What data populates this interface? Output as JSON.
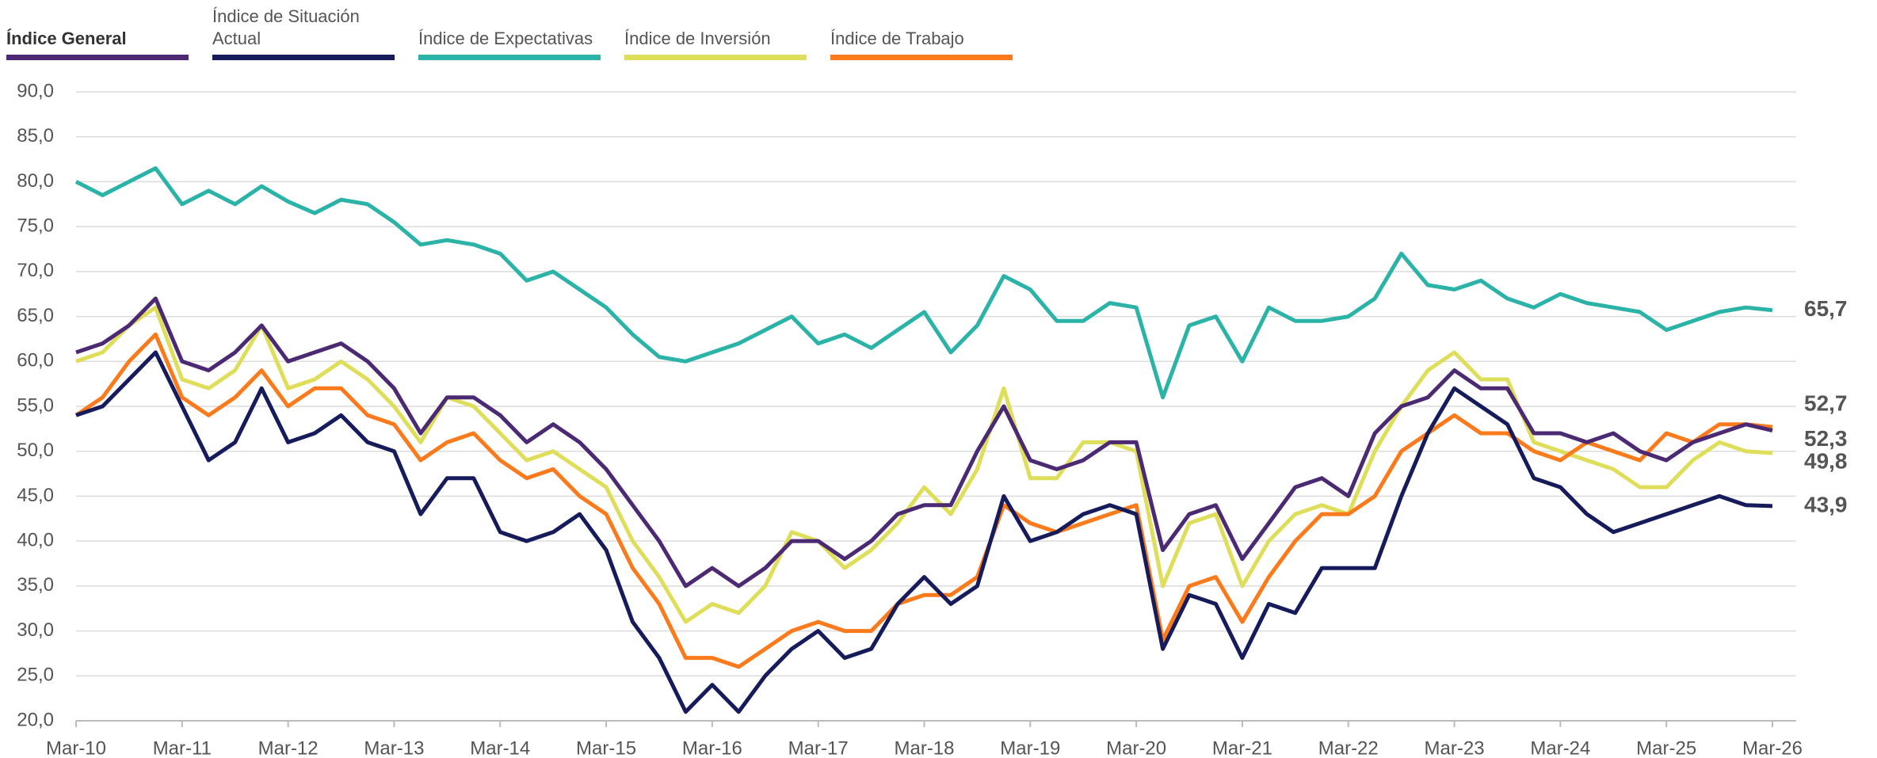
{
  "chart_data": {
    "type": "line",
    "categories": [
      "Mar-10",
      null,
      null,
      null,
      "Mar-11",
      null,
      null,
      null,
      "Mar-12",
      null,
      null,
      null,
      "Mar-13",
      null,
      null,
      null,
      "Mar-14",
      null,
      null,
      null,
      "Mar-15",
      null,
      null,
      null,
      "Mar-16",
      null,
      null,
      null,
      "Mar-17",
      null,
      null,
      null,
      "Mar-18",
      null,
      null,
      null,
      "Mar-19",
      null,
      null,
      null,
      "Mar-20",
      null,
      null,
      null,
      "Mar-21",
      null,
      null,
      null,
      "Mar-22",
      null,
      null,
      null,
      "Mar-23",
      null,
      null,
      null,
      "Mar-24",
      null,
      null,
      null,
      "Mar-25",
      null,
      null,
      null,
      "Mar-26"
    ],
    "series": [
      {
        "name": "Índice General",
        "color": "#4b2a73",
        "end_label": "52,3",
        "values": [
          61,
          62,
          64,
          67,
          60,
          59,
          61,
          64,
          60,
          61,
          62,
          60,
          57,
          52,
          56,
          56,
          54,
          51,
          53,
          51,
          48,
          44,
          40,
          35,
          37,
          35,
          37,
          40,
          40,
          38,
          40,
          43,
          44,
          44,
          50,
          55,
          49,
          48,
          49,
          51,
          51,
          39,
          43,
          44,
          38,
          42,
          46,
          47,
          45,
          52,
          55,
          56,
          59,
          57,
          57,
          52,
          52,
          51,
          52,
          50,
          49,
          51,
          52,
          53,
          52.3
        ]
      },
      {
        "name": "Índice de Situación Actual",
        "color": "#161b5c",
        "end_label": "43,9",
        "values": [
          54,
          55,
          58,
          61,
          55,
          49,
          51,
          57,
          51,
          52,
          54,
          51,
          50,
          43,
          47,
          47,
          41,
          40,
          41,
          43,
          39,
          31,
          27,
          21,
          24,
          21,
          25,
          28,
          30,
          27,
          28,
          33,
          36,
          33,
          35,
          45,
          40,
          41,
          43,
          44,
          43,
          28,
          34,
          33,
          27,
          33,
          32,
          37,
          37,
          37,
          45,
          52,
          57,
          55,
          53,
          47,
          46,
          43,
          41,
          42,
          43,
          44,
          45,
          44,
          43.9
        ]
      },
      {
        "name": "Índice de Expectativas",
        "color": "#2bb3a8",
        "end_label": "65,7",
        "values": [
          80,
          78.5,
          80,
          81.5,
          77.5,
          79,
          77.5,
          79.5,
          77.8,
          76.5,
          78,
          77.5,
          75.5,
          73,
          73.5,
          73,
          72,
          69,
          70,
          68,
          66,
          63,
          60.5,
          60,
          61,
          62,
          63.5,
          65,
          62,
          63,
          61.5,
          63.5,
          65.5,
          61,
          64,
          69.5,
          68,
          64.5,
          64.5,
          66.5,
          66,
          56,
          64,
          65,
          60,
          66,
          64.5,
          64.5,
          65,
          67,
          72,
          68.5,
          68,
          69,
          67,
          66,
          67.5,
          66.5,
          66,
          65.5,
          63.5,
          64.5,
          65.5,
          66,
          65.7
        ]
      },
      {
        "name": "Índice de Inversión",
        "color": "#dede5a",
        "end_label": "49,8",
        "values": [
          60,
          61,
          64,
          66,
          58,
          57,
          59,
          64,
          57,
          58,
          60,
          58,
          55,
          51,
          56,
          55,
          52,
          49,
          50,
          48,
          46,
          40,
          36,
          31,
          33,
          32,
          35,
          41,
          40,
          37,
          39,
          42,
          46,
          43,
          48,
          57,
          47,
          47,
          51,
          51,
          50,
          35,
          42,
          43,
          35,
          40,
          43,
          44,
          43,
          50,
          55,
          59,
          61,
          58,
          58,
          51,
          50,
          49,
          48,
          46,
          46,
          49,
          51,
          50,
          49.8
        ]
      },
      {
        "name": "Índice de Trabajo",
        "color": "#fb7a1c",
        "end_label": "52,7",
        "values": [
          54,
          56,
          60,
          63,
          56,
          54,
          56,
          59,
          55,
          57,
          57,
          54,
          53,
          49,
          51,
          52,
          49,
          47,
          48,
          45,
          43,
          37,
          33,
          27,
          27,
          26,
          28,
          30,
          31,
          30,
          30,
          33,
          34,
          34,
          36,
          44,
          42,
          41,
          42,
          43,
          44,
          29,
          35,
          36,
          31,
          36,
          40,
          43,
          43,
          45,
          50,
          52,
          54,
          52,
          52,
          50,
          49,
          51,
          50,
          49,
          52,
          51,
          53,
          53,
          52.7
        ]
      }
    ],
    "ylim": [
      20,
      90
    ],
    "yticks": [
      {
        "value": 20,
        "label": "20,0"
      },
      {
        "value": 25,
        "label": "25,0"
      },
      {
        "value": 30,
        "label": "30,0"
      },
      {
        "value": 35,
        "label": "35,0"
      },
      {
        "value": 40,
        "label": "40,0"
      },
      {
        "value": 45,
        "label": "45,0"
      },
      {
        "value": 50,
        "label": "50,0"
      },
      {
        "value": 55,
        "label": "55,0"
      },
      {
        "value": 60,
        "label": "60,0"
      },
      {
        "value": 65,
        "label": "65,0"
      },
      {
        "value": 70,
        "label": "70,0"
      },
      {
        "value": 75,
        "label": "75,0"
      },
      {
        "value": 80,
        "label": "80,0"
      },
      {
        "value": 85,
        "label": "85,0"
      },
      {
        "value": 90,
        "label": "90,0"
      }
    ],
    "grid": true,
    "legend": "top"
  }
}
